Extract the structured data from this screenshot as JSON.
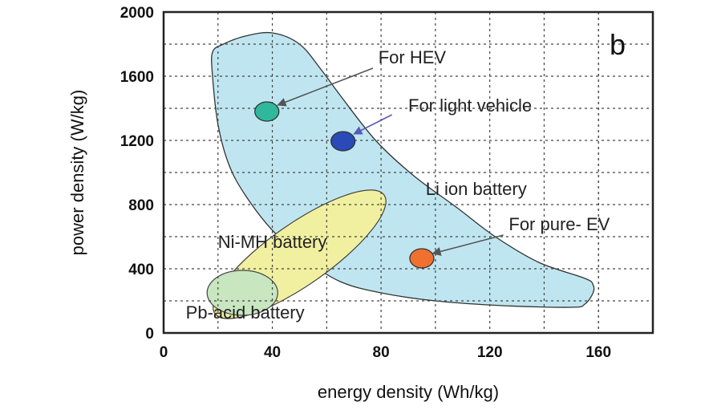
{
  "chart_data": {
    "type": "scatter",
    "panel_label": "b",
    "xlabel": "energy density (Wh/kg)",
    "ylabel": "power density (W/kg)",
    "xlim": [
      0,
      180
    ],
    "ylim": [
      0,
      2000
    ],
    "xticks": [
      0,
      40,
      80,
      120,
      160
    ],
    "yticks": [
      0,
      400,
      800,
      1200,
      1600,
      2000
    ],
    "grid": true,
    "regions": [
      {
        "name": "Li ion battery",
        "color": "#bfe6f0",
        "label_at": [
          115,
          860
        ],
        "outline": [
          [
            22,
            1800
          ],
          [
            30,
            1850
          ],
          [
            40,
            1870
          ],
          [
            50,
            1800
          ],
          [
            58,
            1640
          ],
          [
            65,
            1480
          ],
          [
            78,
            1200
          ],
          [
            92,
            980
          ],
          [
            108,
            780
          ],
          [
            122,
            600
          ],
          [
            138,
            440
          ],
          [
            155,
            340
          ],
          [
            158,
            300
          ],
          [
            158,
            250
          ],
          [
            155,
            180
          ],
          [
            150,
            160
          ],
          [
            125,
            170
          ],
          [
            100,
            200
          ],
          [
            80,
            250
          ],
          [
            65,
            320
          ],
          [
            52,
            460
          ],
          [
            40,
            640
          ],
          [
            30,
            860
          ],
          [
            24,
            1050
          ],
          [
            20,
            1300
          ],
          [
            18,
            1600
          ],
          [
            18,
            1750
          ]
        ]
      },
      {
        "name": "Ni-MH battery",
        "color": "#f0f0a0",
        "label_at": [
          40,
          530
        ],
        "ellipse": {
          "cx": 50,
          "cy": 490,
          "rx": 38,
          "ry": 190,
          "angle": -35
        }
      },
      {
        "name": "Pb-acid battery",
        "color": "#c8e6c0",
        "label_at": [
          30,
          90
        ],
        "ellipse": {
          "cx": 29,
          "cy": 250,
          "rx": 13,
          "ry": 140,
          "angle": 0
        }
      }
    ],
    "points": [
      {
        "name": "For HEV",
        "x": 38,
        "y": 1380,
        "color": "#2fb89c"
      },
      {
        "name": "For light vehicle",
        "x": 66,
        "y": 1195,
        "color": "#2a4ab8"
      },
      {
        "name": "For pure- EV",
        "x": 95,
        "y": 465,
        "color": "#f07030"
      }
    ],
    "annotations": [
      {
        "text": "For HEV",
        "text_at": [
          79,
          1680
        ],
        "arrow_from": [
          77,
          1650
        ],
        "arrow_to": [
          42,
          1420
        ],
        "arrow_color": "#555555"
      },
      {
        "text": "For light vehicle",
        "text_at": [
          90,
          1380
        ],
        "arrow_from": [
          84,
          1360
        ],
        "arrow_to": [
          70,
          1240
        ],
        "arrow_color": "#5a5ab8"
      },
      {
        "text": "For pure- EV",
        "text_at": [
          127,
          640
        ],
        "arrow_from": [
          125,
          610
        ],
        "arrow_to": [
          99,
          495
        ],
        "arrow_color": "#555555"
      }
    ]
  }
}
